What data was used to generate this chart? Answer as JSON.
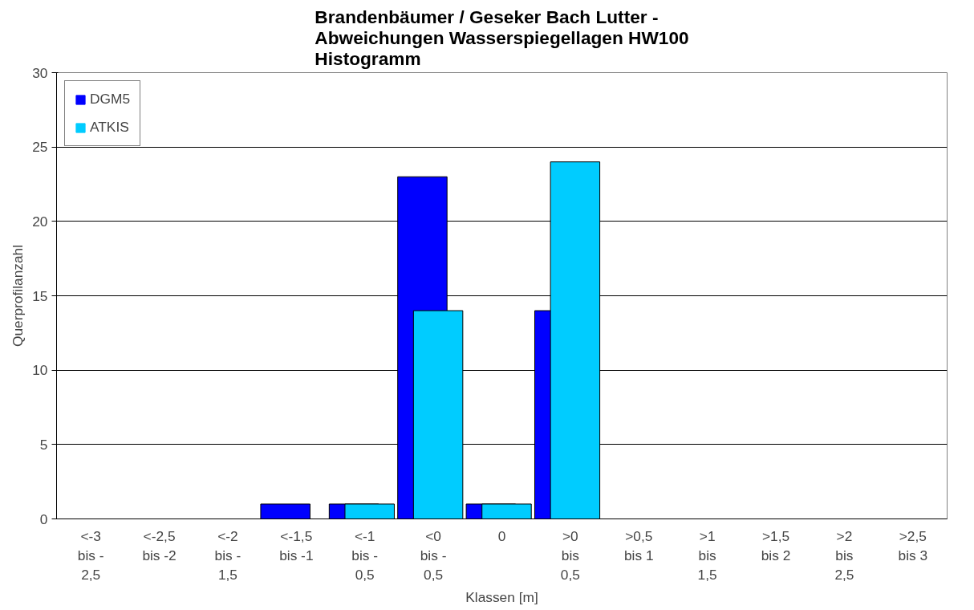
{
  "chart_data": {
    "type": "bar",
    "title": "Brandenbäumer / Geseker Bach Lutter -\nAbweichungen Wasserspiegellagen HW100\nHistogramm",
    "xlabel": "Klassen [m]",
    "ylabel": "Querprofilanzahl",
    "categories": [
      "<-3\nbis -\n2,5",
      "<-2,5\nbis -2",
      "<-2\nbis -\n1,5",
      "<-1,5\nbis -1",
      "<-1\nbis -\n0,5",
      "<0\nbis -\n0,5",
      "0",
      ">0\nbis\n0,5",
      ">0,5\nbis 1",
      ">1\nbis\n1,5",
      ">1,5\nbis 2",
      ">2\nbis\n2,5",
      ">2,5\nbis 3"
    ],
    "series": [
      {
        "name": "DGM5",
        "color": "#0000ff",
        "values": [
          0,
          0,
          0,
          1,
          1,
          23,
          1,
          14,
          0,
          0,
          0,
          0,
          0
        ]
      },
      {
        "name": "ATKIS",
        "color": "#00ccff",
        "values": [
          0,
          0,
          0,
          0,
          1,
          14,
          1,
          24,
          0,
          0,
          0,
          0,
          0
        ]
      }
    ],
    "ylim": [
      0,
      30
    ],
    "yticks": [
      0,
      5,
      10,
      15,
      20,
      25,
      30
    ],
    "grid": "y",
    "legend": "top left"
  }
}
